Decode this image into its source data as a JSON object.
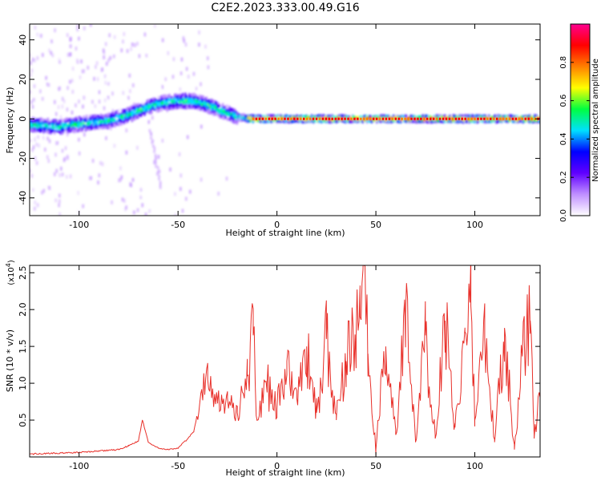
{
  "figure": {
    "title": "C2E2.2023.333.00.49.G16"
  },
  "chart_data": [
    {
      "type": "heatmap",
      "title": "C2E2.2023.333.00.49.G16",
      "xlabel": "Height of straight line (km)",
      "ylabel": "Frequency (Hz)",
      "xlim": [
        -125,
        133
      ],
      "ylim": [
        -49,
        48
      ],
      "xticks": [
        -100,
        -50,
        0,
        50,
        100
      ],
      "yticks": [
        -40,
        -20,
        0,
        20,
        40
      ],
      "ridge_frequency_hz": {
        "x": [
          -125,
          -110,
          -95,
          -85,
          -75,
          -65,
          -58,
          -50,
          -42,
          -35,
          -28,
          -20,
          -12,
          -5,
          0,
          10,
          30,
          60,
          90,
          133
        ],
        "y": [
          -3,
          -4,
          -2,
          -1,
          2,
          6,
          8,
          9,
          9,
          7,
          4,
          1,
          0,
          0,
          0,
          0,
          0,
          0,
          0,
          0
        ]
      },
      "colorbar": {
        "label": "Normalized spectral amplitude",
        "range": [
          0,
          1
        ],
        "ticks": [
          "0.0",
          "0.2",
          "0.4",
          "0.6",
          "0.8"
        ],
        "colors": [
          "#ffffff",
          "#c090ff",
          "#6000ff",
          "#0000ff",
          "#00e0ff",
          "#00ff40",
          "#ffff00",
          "#ff8000",
          "#ff0000",
          "#ff0090"
        ]
      }
    },
    {
      "type": "line",
      "xlabel": "Height of straight line (km)",
      "ylabel": "SNR (10 * v/v)",
      "scale_label": "(x10",
      "scale_exponent": "4",
      "scale_suffix": ")",
      "xlim": [
        -125,
        133
      ],
      "ylim": [
        0,
        2.6
      ],
      "xticks": [
        -100,
        -50,
        0,
        50,
        100
      ],
      "yticks": [
        "0.5",
        "1.0",
        "1.5",
        "2.0",
        "2.5"
      ],
      "series": [
        {
          "color": "#e8302a",
          "x": [
            -125,
            -100,
            -90,
            -80,
            -75,
            -70,
            -68,
            -65,
            -60,
            -55,
            -50,
            -45,
            -42,
            -38,
            -35,
            -30,
            -25,
            -20,
            -15,
            -12,
            -10,
            -5,
            0,
            5,
            10,
            15,
            20,
            25,
            30,
            35,
            40,
            42,
            44,
            46,
            50,
            55,
            60,
            65,
            70,
            75,
            80,
            85,
            90,
            95,
            98,
            100,
            105,
            110,
            115,
            120,
            125,
            128,
            130,
            133
          ],
          "y": [
            0.04,
            0.06,
            0.08,
            0.1,
            0.15,
            0.22,
            0.5,
            0.2,
            0.12,
            0.1,
            0.12,
            0.25,
            0.35,
            0.9,
            1.05,
            0.75,
            0.8,
            0.6,
            1.1,
            1.65,
            0.5,
            1.0,
            0.65,
            1.3,
            0.8,
            1.5,
            0.6,
            1.6,
            0.5,
            1.3,
            1.65,
            1.9,
            2.6,
            1.4,
            0.1,
            1.5,
            0.3,
            1.95,
            0.2,
            1.65,
            0.25,
            1.85,
            0.4,
            1.7,
            2.05,
            0.5,
            1.6,
            0.2,
            1.75,
            0.1,
            1.6,
            1.85,
            0.25,
            0.9
          ]
        }
      ]
    }
  ]
}
